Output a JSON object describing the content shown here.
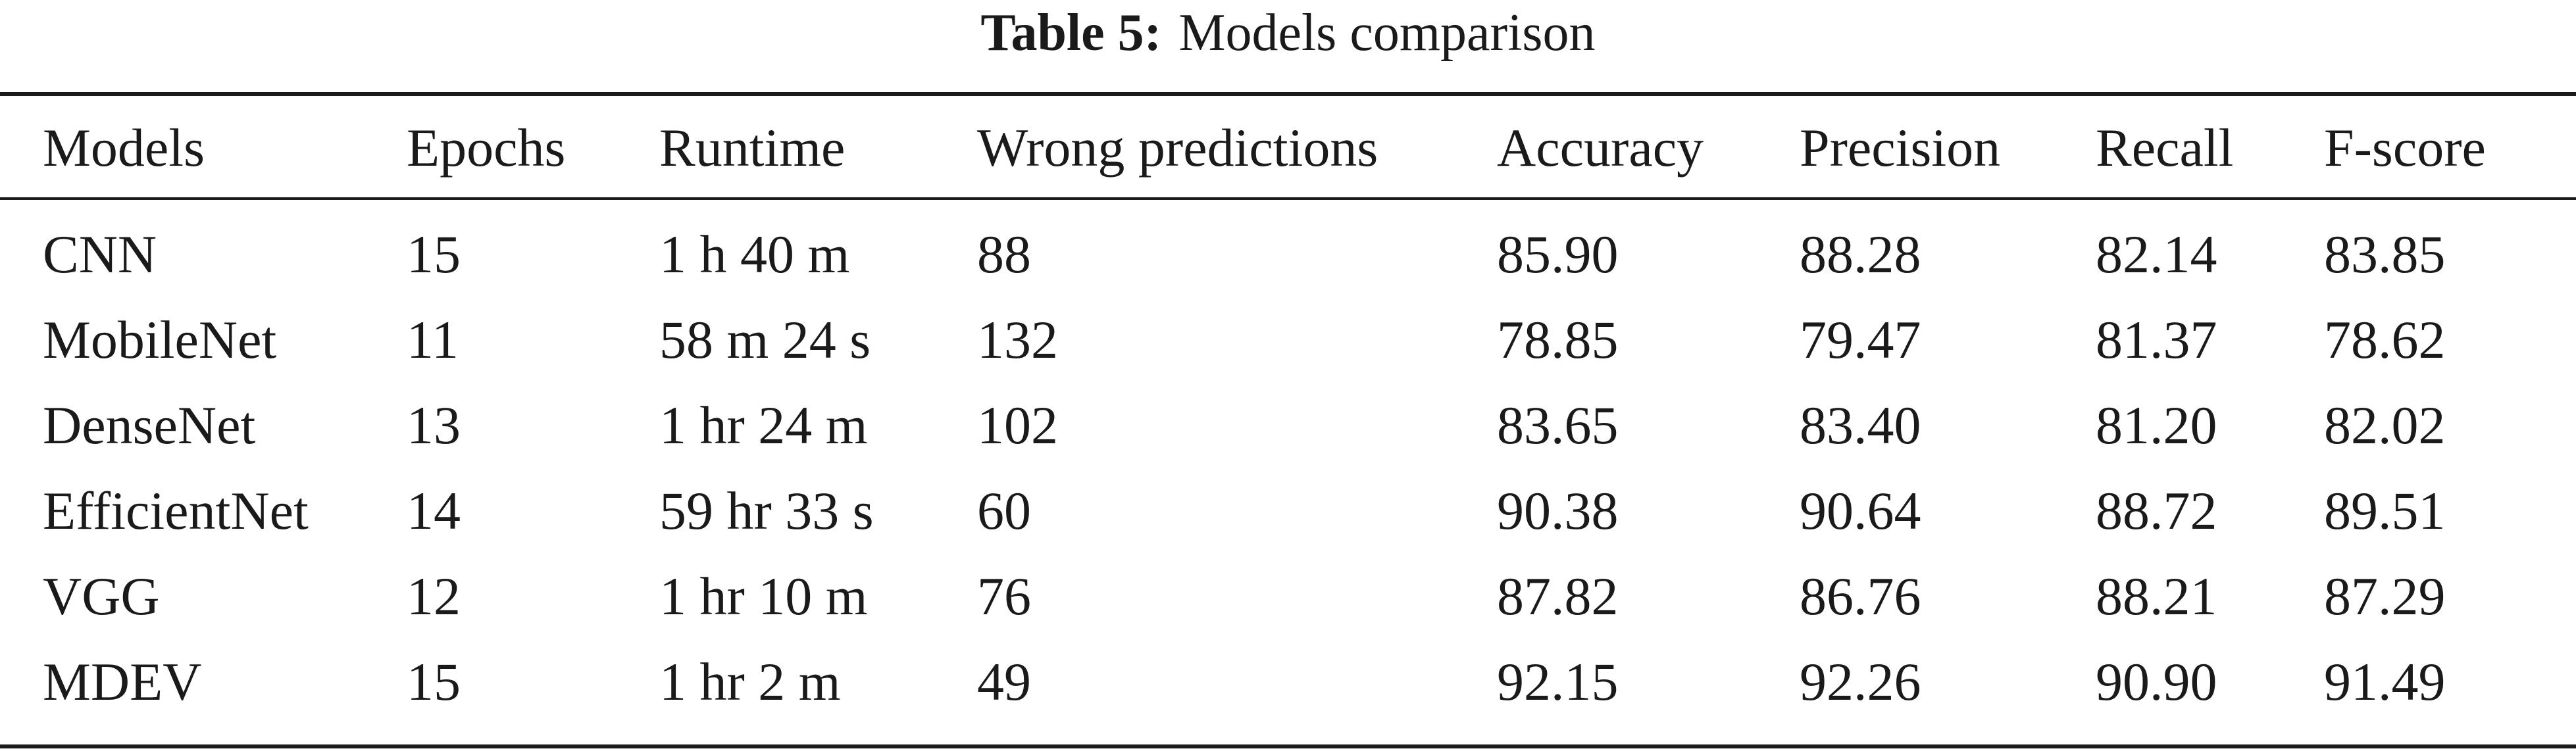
{
  "caption": {
    "label": "Table 5:",
    "text": "Models comparison"
  },
  "table": {
    "headers": [
      "Models",
      "Epochs",
      "Runtime",
      "Wrong predictions",
      "Accuracy",
      "Precision",
      "Recall",
      "F-score"
    ],
    "rows": [
      [
        "CNN",
        "15",
        "1 h 40 m",
        "88",
        "85.90",
        "88.28",
        "82.14",
        "83.85"
      ],
      [
        "MobileNet",
        "11",
        "58 m 24 s",
        "132",
        "78.85",
        "79.47",
        "81.37",
        "78.62"
      ],
      [
        "DenseNet",
        "13",
        "1 hr 24 m",
        "102",
        "83.65",
        "83.40",
        "81.20",
        "82.02"
      ],
      [
        "EfficientNet",
        "14",
        "59 hr 33 s",
        "60",
        "90.38",
        "90.64",
        "88.72",
        "89.51"
      ],
      [
        "VGG",
        "12",
        "1 hr 10 m",
        "76",
        "87.82",
        "86.76",
        "88.21",
        "87.29"
      ],
      [
        "MDEV",
        "15",
        "1 hr 2 m",
        "49",
        "92.15",
        "92.26",
        "90.90",
        "91.49"
      ]
    ]
  }
}
